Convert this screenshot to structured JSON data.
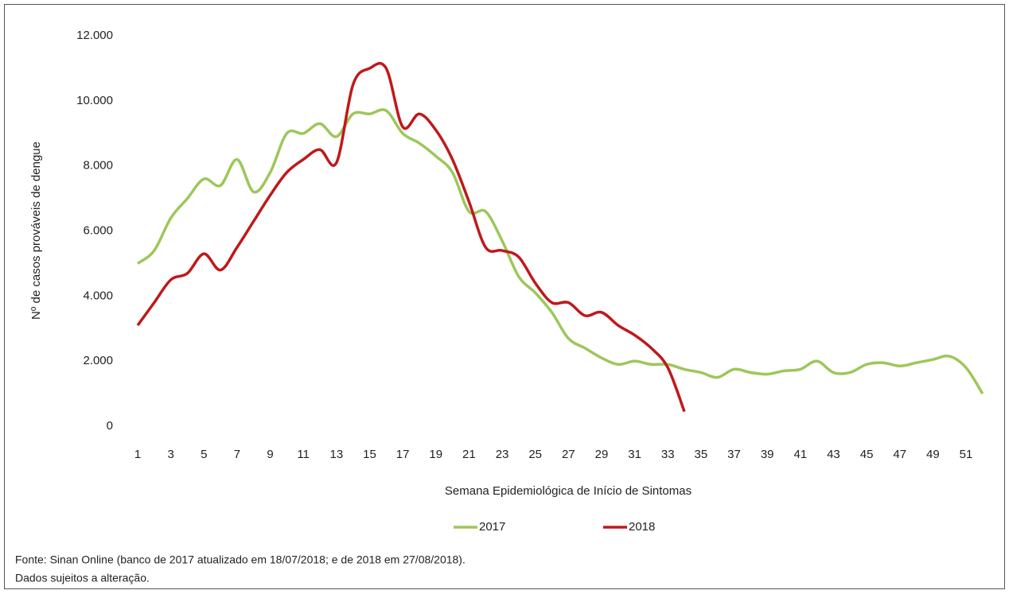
{
  "chart_data": {
    "type": "line",
    "y_label": "Nº de casos prováveis de dengue",
    "x_label": "Semana Epidemiológica de Início de Sintomas",
    "categories": [
      "1",
      null,
      "3",
      null,
      "5",
      null,
      "7",
      null,
      "9",
      null,
      "11",
      null,
      "13",
      null,
      "15",
      null,
      "17",
      null,
      "19",
      null,
      "21",
      null,
      "23",
      null,
      "25",
      null,
      "27",
      null,
      "29",
      null,
      "31",
      null,
      "33",
      null,
      "35",
      null,
      "37",
      null,
      "39",
      null,
      "41",
      null,
      "43",
      null,
      "45",
      null,
      "47",
      null,
      "49",
      null,
      "51",
      null
    ],
    "series": [
      {
        "name": "2017",
        "color": "#9dc75a",
        "values": [
          5000,
          5400,
          6400,
          7000,
          7600,
          7400,
          8200,
          7200,
          7800,
          9000,
          9000,
          9300,
          8900,
          9600,
          9600,
          9700,
          9000,
          8700,
          8300,
          7800,
          6600,
          6600,
          5700,
          4600,
          4100,
          3500,
          2700,
          2400,
          2100,
          1900,
          2000,
          1900,
          1900,
          1750,
          1650,
          1500,
          1750,
          1650,
          1600,
          1700,
          1750,
          2000,
          1650,
          1650,
          1900,
          1950,
          1850,
          1950,
          2050,
          2150,
          1800,
          1000
        ]
      },
      {
        "name": "2018",
        "color": "#c0181b",
        "values": [
          3100,
          3800,
          4500,
          4700,
          5300,
          4800,
          5500,
          6300,
          7100,
          7800,
          8200,
          8500,
          8100,
          10500,
          11000,
          11000,
          9200,
          9600,
          9100,
          8200,
          6900,
          5500,
          5400,
          5200,
          4400,
          3800,
          3800,
          3400,
          3500,
          3100,
          2800,
          2400,
          1800,
          450,
          null,
          null,
          null,
          null,
          null,
          null,
          null,
          null,
          null,
          null,
          null,
          null,
          null,
          null,
          null,
          null,
          null,
          null
        ]
      }
    ],
    "ylim": [
      0,
      12000
    ],
    "yticks": [
      0,
      {
        "value": 2000,
        "label": "2.000"
      },
      {
        "value": 4000,
        "label": "4.000"
      },
      {
        "value": 6000,
        "label": "6.000"
      },
      {
        "value": 8000,
        "label": "8.000"
      },
      {
        "value": 10000,
        "label": "10.000"
      },
      {
        "value": 12000,
        "label": "12.000"
      }
    ],
    "grid": false,
    "legend": "bottom",
    "notes": [
      "Fonte: Sinan Online (banco de 2017 atualizado em 18/07/2018; e de 2018 em 27/08/2018).",
      "Dados sujeitos a alteração."
    ]
  }
}
